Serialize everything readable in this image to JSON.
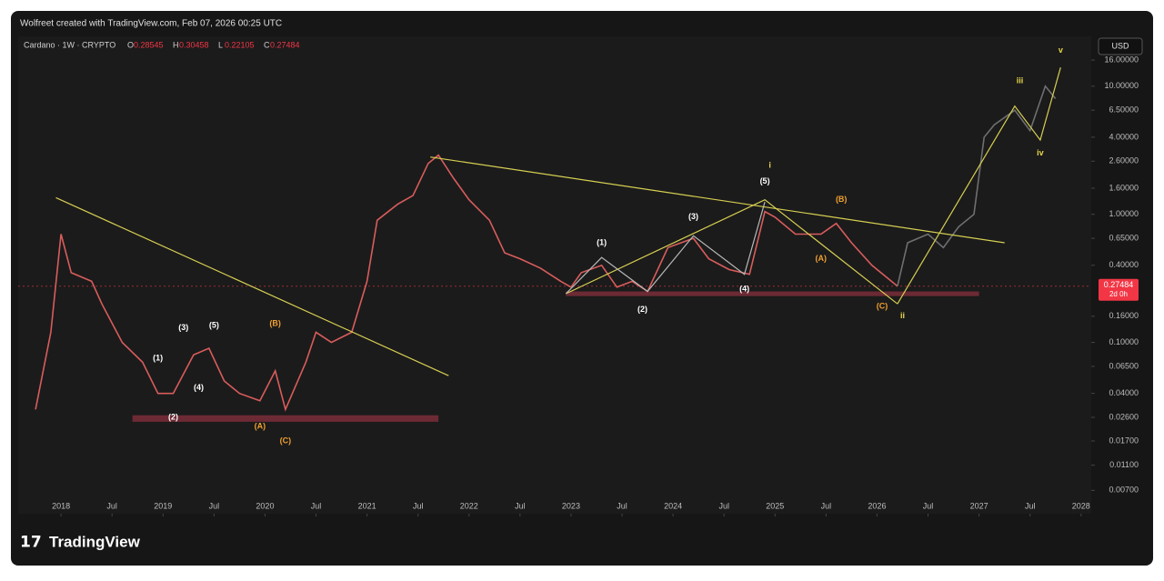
{
  "header": {
    "credit": "Wolfreet created with TradingView.com, Feb 07, 2026 00:25 UTC",
    "symbol": "Cardano · 1W · CRYPTO",
    "ohlc": [
      {
        "label": "O",
        "value": 0.28545
      },
      {
        "label": "H",
        "value": 0.30458
      },
      {
        "label": "L",
        "value": 0.22105
      },
      {
        "label": "C",
        "value": 0.27484
      }
    ],
    "currency": "USD",
    "logo": "TradingView"
  },
  "chart_data": {
    "type": "line",
    "log_y": true,
    "xlim": [
      2017.58,
      2028.1
    ],
    "ylim": [
      0.0046,
      24.5
    ],
    "xticks": [
      2018,
      {
        "value": 2018.5,
        "label": "Jul"
      },
      2019,
      {
        "value": 2019.5,
        "label": "Jul"
      },
      2020,
      {
        "value": 2020.5,
        "label": "Jul"
      },
      2021,
      {
        "value": 2021.5,
        "label": "Jul"
      },
      2022,
      {
        "value": 2022.5,
        "label": "Jul"
      },
      2023,
      {
        "value": 2023.5,
        "label": "Jul"
      },
      2024,
      {
        "value": 2024.5,
        "label": "Jul"
      },
      2025,
      {
        "value": 2025.5,
        "label": "Jul"
      },
      2026,
      {
        "value": 2026.5,
        "label": "Jul"
      },
      2027,
      {
        "value": 2027.5,
        "label": "Jul"
      },
      2028
    ],
    "yticks": [
      {
        "value": 16,
        "label": "16.00000"
      },
      {
        "value": 10,
        "label": "10.00000"
      },
      {
        "value": 6.5,
        "label": "6.50000"
      },
      {
        "value": 4,
        "label": "4.00000"
      },
      {
        "value": 2.6,
        "label": "2.60000"
      },
      {
        "value": 1.6,
        "label": "1.60000"
      },
      {
        "value": 1,
        "label": "1.00000"
      },
      {
        "value": 0.65,
        "label": "0.65000"
      },
      {
        "value": 0.4,
        "label": "0.40000"
      },
      {
        "value": 0.16,
        "label": "0.16000"
      },
      {
        "value": 0.1,
        "label": "0.10000"
      },
      {
        "value": 0.065,
        "label": "0.06500"
      },
      {
        "value": 0.04,
        "label": "0.04000"
      },
      {
        "value": 0.026,
        "label": "0.02600"
      },
      {
        "value": 0.017,
        "label": "0.01700"
      },
      {
        "value": 0.011,
        "label": "0.01100"
      },
      {
        "value": 0.007,
        "label": "0.00700"
      }
    ],
    "last_price": 0.27484,
    "countdown": "2d 0h",
    "last_price_color": "#f23645",
    "series": [
      {
        "color": "#d95c5c",
        "x": [
          2017.75,
          2017.9,
          2018.0,
          2018.1,
          2018.3,
          2018.4,
          2018.6,
          2018.8,
          2018.95,
          2019.1,
          2019.3,
          2019.45,
          2019.6,
          2019.75,
          2019.95,
          2020.1,
          2020.2,
          2020.4,
          2020.5,
          2020.65,
          2020.85,
          2021.0,
          2021.1,
          2021.3,
          2021.45,
          2021.6,
          2021.7,
          2021.85,
          2022.0,
          2022.2,
          2022.35,
          2022.5,
          2022.7,
          2022.9,
          2023.0,
          2023.1,
          2023.3,
          2023.45,
          2023.6,
          2023.75,
          2023.95,
          2024.2,
          2024.35,
          2024.55,
          2024.75,
          2024.9,
          2025.0,
          2025.2,
          2025.45,
          2025.6,
          2025.75,
          2025.95,
          2026.2
        ],
        "values": [
          0.03,
          0.12,
          0.7,
          0.35,
          0.3,
          0.2,
          0.1,
          0.07,
          0.04,
          0.04,
          0.08,
          0.09,
          0.05,
          0.04,
          0.035,
          0.06,
          0.03,
          0.07,
          0.12,
          0.1,
          0.12,
          0.3,
          0.9,
          1.2,
          1.4,
          2.5,
          2.9,
          1.9,
          1.3,
          0.9,
          0.5,
          0.45,
          0.38,
          0.3,
          0.27,
          0.35,
          0.4,
          0.27,
          0.3,
          0.25,
          0.55,
          0.65,
          0.45,
          0.37,
          0.34,
          1.05,
          0.95,
          0.7,
          0.7,
          0.85,
          0.6,
          0.4,
          0.27484
        ]
      },
      {
        "color": "#6f6f6f",
        "x": [
          2026.2,
          2026.3,
          2026.5,
          2026.65,
          2026.8,
          2026.95,
          2027.05,
          2027.15,
          2027.35,
          2027.5,
          2027.65,
          2027.75
        ],
        "values": [
          0.27484,
          0.6,
          0.7,
          0.55,
          0.8,
          1.0,
          4,
          5,
          6.5,
          4.5,
          10,
          8
        ]
      },
      {
        "color": "#d6cf52",
        "x": [
          2026.2,
          2027.35,
          2027.6,
          2027.8
        ],
        "values": [
          0.2,
          7,
          3.8,
          14
        ]
      },
      {
        "color": "#d6cf52",
        "x": [
          2022.95,
          2024.9,
          2026.2
        ],
        "values": [
          0.24,
          1.3,
          0.2
        ]
      },
      {
        "color": "#b8b8b8",
        "x": [
          2022.95,
          2023.3,
          2023.75,
          2024.2,
          2024.7,
          2024.9
        ],
        "values": [
          0.24,
          0.46,
          0.25,
          0.68,
          0.34,
          1.25
        ]
      },
      {
        "color": "#d6cf52",
        "x": [
          2017.95,
          2021.8
        ],
        "values": [
          1.35,
          0.055
        ]
      },
      {
        "color": "#d6cf52",
        "x": [
          2021.62,
          2027.25
        ],
        "values": [
          2.8,
          0.6
        ]
      }
    ],
    "zones": [
      {
        "color": "#7a2d38",
        "x": [
          2018.7,
          2021.7
        ],
        "y": [
          0.024,
          0.027
        ]
      },
      {
        "color": "#7a2d38",
        "x": [
          2022.95,
          2027.0
        ],
        "y": [
          0.23,
          0.25
        ]
      }
    ],
    "annotations": [
      {
        "text": "(1)",
        "x": 2018.95,
        "y": 0.075,
        "color": "#ffffff"
      },
      {
        "text": "(2)",
        "x": 2019.1,
        "y": 0.026,
        "color": "#ffffff"
      },
      {
        "text": "(3)",
        "x": 2019.2,
        "y": 0.13,
        "color": "#ffffff"
      },
      {
        "text": "(4)",
        "x": 2019.35,
        "y": 0.044,
        "color": "#ffffff"
      },
      {
        "text": "(5)",
        "x": 2019.5,
        "y": 0.135,
        "color": "#ffffff"
      },
      {
        "text": "(B)",
        "x": 2020.1,
        "y": 0.14,
        "color": "#f0a030"
      },
      {
        "text": "(A)",
        "x": 2019.95,
        "y": 0.022,
        "color": "#f0a030"
      },
      {
        "text": "(C)",
        "x": 2020.2,
        "y": 0.017,
        "color": "#f0a030"
      },
      {
        "text": "(1)",
        "x": 2023.3,
        "y": 0.6,
        "color": "#ffffff"
      },
      {
        "text": "(2)",
        "x": 2023.7,
        "y": 0.18,
        "color": "#ffffff"
      },
      {
        "text": "(3)",
        "x": 2024.2,
        "y": 0.95,
        "color": "#ffffff"
      },
      {
        "text": "(4)",
        "x": 2024.7,
        "y": 0.26,
        "color": "#ffffff"
      },
      {
        "text": "(5)",
        "x": 2024.9,
        "y": 1.8,
        "color": "#ffffff"
      },
      {
        "text": "i",
        "x": 2024.95,
        "y": 2.4,
        "color": "#e8d84a"
      },
      {
        "text": "(B)",
        "x": 2025.65,
        "y": 1.3,
        "color": "#f0a030"
      },
      {
        "text": "(A)",
        "x": 2025.45,
        "y": 0.45,
        "color": "#f0a030"
      },
      {
        "text": "(C)",
        "x": 2026.05,
        "y": 0.19,
        "color": "#f0a030"
      },
      {
        "text": "ii",
        "x": 2026.25,
        "y": 0.16,
        "color": "#e8d84a"
      },
      {
        "text": "iii",
        "x": 2027.4,
        "y": 11,
        "color": "#e8d84a"
      },
      {
        "text": "iv",
        "x": 2027.6,
        "y": 3,
        "color": "#e8d84a"
      },
      {
        "text": "v",
        "x": 2027.8,
        "y": 19,
        "color": "#e8d84a"
      }
    ]
  }
}
